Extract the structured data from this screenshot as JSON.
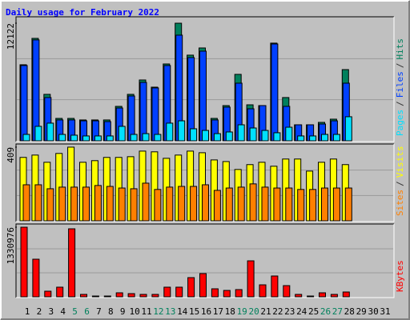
{
  "chart_data": [
    {
      "type": "bar",
      "title": "Daily usage for February 2022",
      "legend_separator": "/",
      "ylim": [
        0,
        12700
      ],
      "yticks": [
        12122
      ],
      "series": [
        {
          "name": "Hits",
          "color": "#00805c",
          "values": [
            7840,
            10560,
            4790,
            2310,
            2310,
            2150,
            2150,
            2150,
            3550,
            4790,
            6270,
            5530,
            7920,
            12122,
            8830,
            9570,
            2310,
            3630,
            6850,
            3710,
            3630,
            10070,
            4460,
            1650,
            1650,
            1900,
            2230,
            7340,
            null,
            null,
            null
          ]
        },
        {
          "name": "Files",
          "color": "#0040ff",
          "values": [
            7760,
            10400,
            4460,
            2150,
            2150,
            2060,
            2060,
            1980,
            3380,
            4620,
            6020,
            5450,
            7760,
            10890,
            8580,
            9240,
            2150,
            3470,
            5940,
            3300,
            3630,
            9980,
            3550,
            1650,
            1650,
            1730,
            2060,
            5940,
            null,
            null,
            null
          ]
        },
        {
          "name": "Pages",
          "color": "#00e0ff",
          "values": [
            660,
            1490,
            1820,
            660,
            580,
            500,
            500,
            500,
            1490,
            660,
            740,
            660,
            1820,
            2060,
            1240,
            1070,
            740,
            910,
            1650,
            1320,
            1070,
            830,
            1400,
            500,
            500,
            660,
            660,
            2480,
            null,
            null,
            null
          ]
        }
      ]
    },
    {
      "type": "bar",
      "legend_separator": "/",
      "ylim": [
        0,
        422
      ],
      "yticks": [
        409
      ],
      "series": [
        {
          "name": "Visits",
          "color": "#ffff00",
          "values": [
            352,
            365,
            325,
            374,
            409,
            325,
            334,
            352,
            352,
            356,
            387,
            383,
            347,
            365,
            387,
            378,
            338,
            329,
            285,
            312,
            325,
            303,
            343,
            343,
            276,
            325,
            343,
            312,
            null,
            null,
            null
          ]
        },
        {
          "name": "Sites",
          "color": "#ff8000",
          "values": [
            200,
            200,
            178,
            187,
            187,
            187,
            196,
            191,
            182,
            178,
            209,
            174,
            187,
            191,
            191,
            200,
            169,
            182,
            187,
            205,
            187,
            182,
            182,
            174,
            174,
            182,
            182,
            182,
            null,
            null,
            null
          ]
        }
      ]
    },
    {
      "type": "bar",
      "legend_separator": "/",
      "ylim": [
        0,
        1376900
      ],
      "yticks": [
        1330976
      ],
      "categories": [
        "1",
        "2",
        "3",
        "4",
        "5",
        "6",
        "7",
        "8",
        "9",
        "10",
        "11",
        "12",
        "13",
        "14",
        "15",
        "16",
        "17",
        "18",
        "19",
        "20",
        "21",
        "22",
        "23",
        "24",
        "25",
        "26",
        "27",
        "28",
        "29",
        "30",
        "31"
      ],
      "category_colors": [
        "#000000",
        "#000000",
        "#000000",
        "#000000",
        "#00805c",
        "#00805c",
        "#000000",
        "#000000",
        "#000000",
        "#000000",
        "#000000",
        "#00805c",
        "#00805c",
        "#000000",
        "#000000",
        "#000000",
        "#000000",
        "#000000",
        "#00805c",
        "#00805c",
        "#000000",
        "#000000",
        "#000000",
        "#000000",
        "#000000",
        "#00805c",
        "#00805c",
        "#000000",
        "#000000",
        "#000000",
        "#000000"
      ],
      "series": [
        {
          "name": "KBytes",
          "color": "#ff0000",
          "values": [
            1330976,
            719000,
            107000,
            184000,
            1300400,
            46000,
            15000,
            15000,
            76500,
            61000,
            46000,
            46000,
            184000,
            184000,
            367000,
            444000,
            153000,
            122000,
            138000,
            688000,
            229000,
            398000,
            214000,
            46000,
            15000,
            76500,
            46000,
            92000,
            null,
            null,
            null
          ]
        }
      ]
    }
  ]
}
